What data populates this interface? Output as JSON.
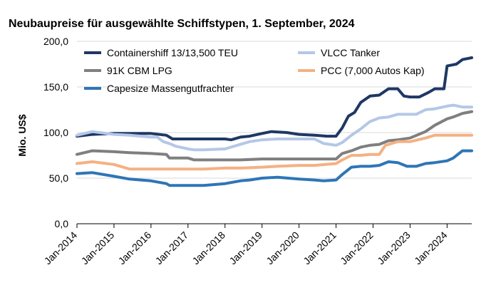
{
  "chart_data": {
    "type": "line",
    "title": "Neubaupreise für ausgewählte Schiffstypen, 1. September, 2024",
    "ylabel": "Mio. US$",
    "xlabel": "",
    "ylim": [
      0,
      200
    ],
    "yticks": [
      "0,0",
      "50,0",
      "100,0",
      "150,0",
      "200,0"
    ],
    "yticks_values": [
      0,
      50,
      100,
      150,
      200
    ],
    "xlim": [
      "2014-01",
      "2024-09"
    ],
    "xticks": [
      "Jan-2014",
      "Jan-2015",
      "Jan-2016",
      "Jan-2017",
      "Jan-2018",
      "Jan-2019",
      "Jan-2020",
      "Jan-2021",
      "Jan-2022",
      "Jan-2023",
      "Jan-2024"
    ],
    "grid": "horizontal",
    "legend_position": "top",
    "series": [
      {
        "name": "Containershiff 13/13,500 TEU",
        "color": "#1f3864",
        "points": [
          [
            "2014-01",
            96
          ],
          [
            "2014-06",
            98
          ],
          [
            "2015-01",
            99
          ],
          [
            "2015-06",
            99
          ],
          [
            "2016-01",
            99
          ],
          [
            "2016-06",
            97
          ],
          [
            "2016-08",
            93
          ],
          [
            "2017-01",
            93
          ],
          [
            "2017-06",
            93
          ],
          [
            "2018-01",
            93
          ],
          [
            "2018-03",
            92
          ],
          [
            "2018-06",
            95
          ],
          [
            "2018-09",
            96
          ],
          [
            "2019-01",
            99
          ],
          [
            "2019-04",
            101
          ],
          [
            "2019-09",
            100
          ],
          [
            "2020-01",
            98
          ],
          [
            "2020-06",
            97
          ],
          [
            "2020-10",
            96
          ],
          [
            "2021-01",
            96
          ],
          [
            "2021-03",
            105
          ],
          [
            "2021-05",
            118
          ],
          [
            "2021-07",
            122
          ],
          [
            "2021-09",
            133
          ],
          [
            "2021-12",
            140
          ],
          [
            "2022-03",
            141
          ],
          [
            "2022-06",
            148
          ],
          [
            "2022-09",
            148
          ],
          [
            "2022-11",
            140
          ],
          [
            "2023-01",
            139
          ],
          [
            "2023-04",
            139
          ],
          [
            "2023-07",
            144
          ],
          [
            "2023-09",
            148
          ],
          [
            "2023-12",
            148
          ],
          [
            "2024-01",
            173
          ],
          [
            "2024-04",
            175
          ],
          [
            "2024-06",
            180
          ],
          [
            "2024-09",
            182
          ]
        ]
      },
      {
        "name": "VLCC Tanker",
        "color": "#b4c7e7",
        "points": [
          [
            "2014-01",
            97
          ],
          [
            "2014-06",
            101
          ],
          [
            "2015-01",
            98
          ],
          [
            "2015-06",
            97
          ],
          [
            "2016-01",
            95
          ],
          [
            "2016-03",
            95
          ],
          [
            "2016-05",
            90
          ],
          [
            "2016-07",
            88
          ],
          [
            "2016-09",
            85
          ],
          [
            "2017-01",
            82
          ],
          [
            "2017-03",
            81
          ],
          [
            "2017-06",
            81
          ],
          [
            "2018-01",
            82
          ],
          [
            "2018-06",
            87
          ],
          [
            "2018-09",
            90
          ],
          [
            "2019-01",
            92
          ],
          [
            "2019-06",
            93
          ],
          [
            "2020-01",
            93
          ],
          [
            "2020-06",
            93
          ],
          [
            "2020-09",
            88
          ],
          [
            "2021-01",
            86
          ],
          [
            "2021-03",
            89
          ],
          [
            "2021-06",
            97
          ],
          [
            "2021-09",
            104
          ],
          [
            "2021-12",
            112
          ],
          [
            "2022-03",
            116
          ],
          [
            "2022-06",
            117
          ],
          [
            "2022-09",
            120
          ],
          [
            "2023-01",
            120
          ],
          [
            "2023-03",
            120
          ],
          [
            "2023-06",
            125
          ],
          [
            "2023-09",
            126
          ],
          [
            "2024-01",
            129
          ],
          [
            "2024-03",
            130
          ],
          [
            "2024-06",
            128
          ],
          [
            "2024-09",
            128
          ]
        ]
      },
      {
        "name": "91K CBM LPG",
        "color": "#7f7f7f",
        "points": [
          [
            "2014-01",
            76
          ],
          [
            "2014-06",
            80
          ],
          [
            "2015-01",
            79
          ],
          [
            "2015-06",
            78
          ],
          [
            "2016-01",
            77
          ],
          [
            "2016-06",
            76
          ],
          [
            "2016-07",
            72
          ],
          [
            "2017-01",
            72
          ],
          [
            "2017-03",
            70
          ],
          [
            "2017-06",
            70
          ],
          [
            "2018-01",
            70
          ],
          [
            "2018-06",
            70
          ],
          [
            "2019-01",
            71
          ],
          [
            "2019-06",
            71
          ],
          [
            "2020-01",
            71
          ],
          [
            "2020-06",
            71
          ],
          [
            "2021-01",
            71
          ],
          [
            "2021-03",
            77
          ],
          [
            "2021-06",
            80
          ],
          [
            "2021-09",
            84
          ],
          [
            "2021-12",
            86
          ],
          [
            "2022-03",
            87
          ],
          [
            "2022-06",
            91
          ],
          [
            "2022-09",
            92
          ],
          [
            "2023-01",
            94
          ],
          [
            "2023-06",
            101
          ],
          [
            "2023-09",
            108
          ],
          [
            "2024-01",
            115
          ],
          [
            "2024-03",
            117
          ],
          [
            "2024-06",
            121
          ],
          [
            "2024-09",
            123
          ]
        ]
      },
      {
        "name": "PCC (7,000 Autos Kap)",
        "color": "#f4b183",
        "points": [
          [
            "2014-01",
            66
          ],
          [
            "2014-06",
            68
          ],
          [
            "2015-01",
            65
          ],
          [
            "2015-06",
            60
          ],
          [
            "2016-01",
            60
          ],
          [
            "2016-06",
            60
          ],
          [
            "2017-01",
            60
          ],
          [
            "2017-06",
            60
          ],
          [
            "2018-01",
            61
          ],
          [
            "2018-06",
            61
          ],
          [
            "2019-01",
            62
          ],
          [
            "2019-06",
            63
          ],
          [
            "2020-01",
            64
          ],
          [
            "2020-06",
            64
          ],
          [
            "2021-01",
            66
          ],
          [
            "2021-03",
            70
          ],
          [
            "2021-06",
            75
          ],
          [
            "2021-09",
            75
          ],
          [
            "2021-12",
            76
          ],
          [
            "2022-03",
            76
          ],
          [
            "2022-05",
            86
          ],
          [
            "2022-09",
            90
          ],
          [
            "2023-01",
            90
          ],
          [
            "2023-06",
            94
          ],
          [
            "2023-09",
            97
          ],
          [
            "2024-01",
            97
          ],
          [
            "2024-06",
            97
          ],
          [
            "2024-09",
            97
          ]
        ]
      },
      {
        "name": "Capesize Massengutfrachter",
        "color": "#2e75b6",
        "points": [
          [
            "2014-01",
            55
          ],
          [
            "2014-06",
            56
          ],
          [
            "2015-01",
            52
          ],
          [
            "2015-06",
            49
          ],
          [
            "2016-01",
            47
          ],
          [
            "2016-06",
            44
          ],
          [
            "2016-07",
            42
          ],
          [
            "2017-01",
            42
          ],
          [
            "2017-06",
            42
          ],
          [
            "2018-01",
            44
          ],
          [
            "2018-06",
            47
          ],
          [
            "2018-09",
            48
          ],
          [
            "2019-01",
            50
          ],
          [
            "2019-06",
            51
          ],
          [
            "2020-01",
            49
          ],
          [
            "2020-06",
            48
          ],
          [
            "2020-09",
            47
          ],
          [
            "2021-01",
            48
          ],
          [
            "2021-03",
            54
          ],
          [
            "2021-06",
            62
          ],
          [
            "2021-09",
            63
          ],
          [
            "2021-12",
            63
          ],
          [
            "2022-03",
            64
          ],
          [
            "2022-06",
            68
          ],
          [
            "2022-09",
            67
          ],
          [
            "2022-12",
            63
          ],
          [
            "2023-03",
            63
          ],
          [
            "2023-06",
            66
          ],
          [
            "2023-09",
            67
          ],
          [
            "2024-01",
            69
          ],
          [
            "2024-03",
            72
          ],
          [
            "2024-06",
            80
          ],
          [
            "2024-09",
            80
          ]
        ]
      }
    ]
  }
}
